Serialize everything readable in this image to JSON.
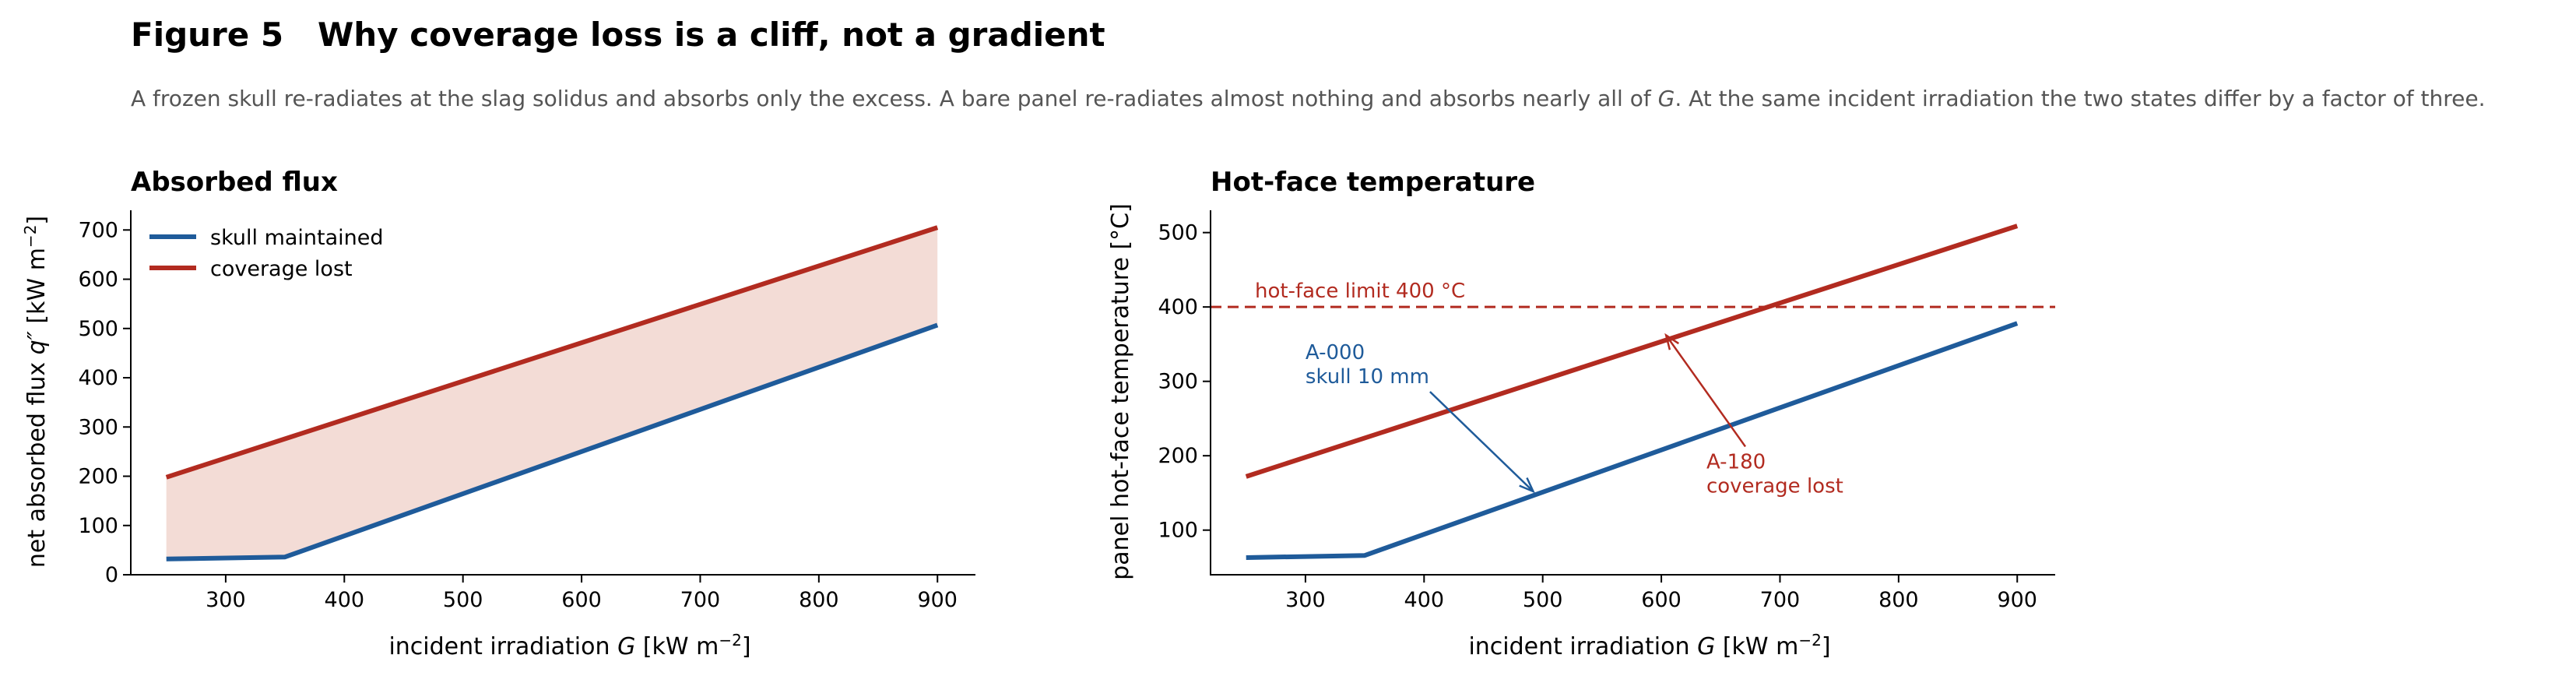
{
  "figure": {
    "title": "Figure 5   Why coverage loss is a cliff, not a gradient",
    "subtitle_before": "A frozen skull re-radiates at the slag solidus and absorbs only the excess. A bare panel re-radiates almost nothing and absorbs nearly all of ",
    "subtitle_var": "G",
    "subtitle_after": ". At the same incident irradiation the two states differ by a factor of three."
  },
  "colors": {
    "blue": "#1f5b9a",
    "red": "#b22b20",
    "fill": "#f3dcd6",
    "axis": "#000000"
  },
  "chart_data": [
    {
      "type": "line",
      "title": "Absorbed flux",
      "xlabel_text": "incident irradiation ",
      "xlabel_var": "G",
      "xlabel_unit": "  [kW m",
      "xlabel_sup": "−2",
      "xlabel_close": "]",
      "ylabel_text": "net absorbed flux ",
      "ylabel_var": "q″",
      "ylabel_unit": "  [kW m",
      "ylabel_sup": "−2",
      "ylabel_close": "]",
      "xlim": [
        220,
        932
      ],
      "ylim": [
        0,
        740
      ],
      "xticks": [
        300,
        400,
        500,
        600,
        700,
        800,
        900
      ],
      "yticks": [
        0,
        100,
        200,
        300,
        400,
        500,
        600,
        700
      ],
      "legend": {
        "position": "top-left",
        "entries": [
          "skull maintained",
          "coverage lost"
        ]
      },
      "fill_between": true,
      "series": [
        {
          "name": "skull maintained",
          "color_key": "blue",
          "x": [
            250,
            350,
            900
          ],
          "y": [
            32,
            36,
            507
          ]
        },
        {
          "name": "coverage lost",
          "color_key": "red",
          "x": [
            250,
            900
          ],
          "y": [
            198,
            705
          ]
        }
      ]
    },
    {
      "type": "line",
      "title": "Hot-face temperature",
      "xlabel_text": "incident irradiation ",
      "xlabel_var": "G",
      "xlabel_unit": "  [kW m",
      "xlabel_sup": "−2",
      "xlabel_close": "]",
      "ylabel_text": "panel hot-face temperature  [°C]",
      "xlim": [
        220,
        932
      ],
      "ylim": [
        40,
        530
      ],
      "xticks": [
        300,
        400,
        500,
        600,
        700,
        800,
        900
      ],
      "yticks": [
        100,
        200,
        300,
        400,
        500
      ],
      "limit": {
        "value": 400,
        "label": "hot-face limit 400 °C"
      },
      "series": [
        {
          "name": "skull maintained",
          "color_key": "blue",
          "x": [
            250,
            350,
            900
          ],
          "y": [
            63,
            66,
            378
          ]
        },
        {
          "name": "coverage lost",
          "color_key": "red",
          "x": [
            250,
            900
          ],
          "y": [
            172,
            509
          ]
        }
      ],
      "annotations": [
        {
          "lines": [
            "A-000",
            "skull 10 mm"
          ],
          "color_key": "blue",
          "text_at": [
            300,
            330
          ],
          "arrow_to": [
            492,
            152
          ]
        },
        {
          "lines": [
            "A-180",
            "coverage lost"
          ],
          "color_key": "red",
          "text_at": [
            638,
            183
          ],
          "arrow_to": [
            604,
            362
          ]
        }
      ]
    }
  ]
}
